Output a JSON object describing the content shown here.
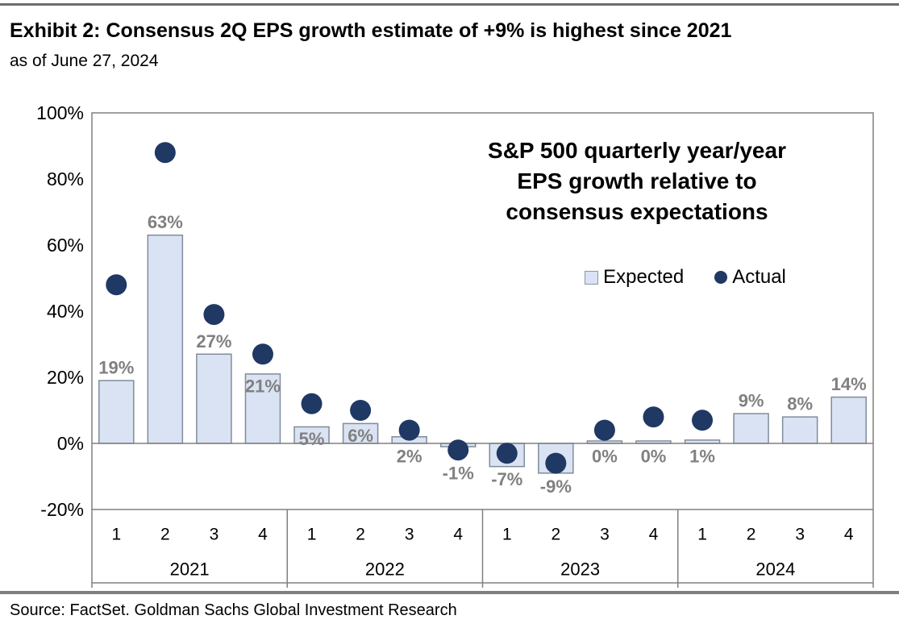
{
  "header": {
    "title": "Exhibit 2: Consensus 2Q EPS growth estimate of +9% is highest since 2021",
    "subtitle": "as of June 27, 2024"
  },
  "annotation": {
    "line1": "S&P 500 quarterly year/year",
    "line2": "EPS growth relative to",
    "line3": "consensus expectations"
  },
  "legend": {
    "expected_label": "Expected",
    "actual_label": "Actual"
  },
  "source": {
    "text": "Source: FactSet. Goldman Sachs Global Investment Research"
  },
  "colors": {
    "bar_fill": "#dae3f3",
    "bar_border": "#7f8c9b",
    "dot": "#1f3864",
    "value_label": "#808080",
    "axis_line": "#808080",
    "text": "#000000"
  },
  "chart_data": {
    "type": "bar+scatter",
    "title": "S&P 500 quarterly year/year EPS growth relative to consensus expectations",
    "categories": [
      "2021 Q1",
      "2021 Q2",
      "2021 Q3",
      "2021 Q4",
      "2022 Q1",
      "2022 Q2",
      "2022 Q3",
      "2022 Q4",
      "2023 Q1",
      "2023 Q2",
      "2023 Q3",
      "2023 Q4",
      "2024 Q1",
      "2024 Q2",
      "2024 Q3",
      "2024 Q4"
    ],
    "years": [
      {
        "label": "2021",
        "quarters": [
          "1",
          "2",
          "3",
          "4"
        ]
      },
      {
        "label": "2022",
        "quarters": [
          "1",
          "2",
          "3",
          "4"
        ]
      },
      {
        "label": "2023",
        "quarters": [
          "1",
          "2",
          "3",
          "4"
        ]
      },
      {
        "label": "2024",
        "quarters": [
          "1",
          "2",
          "3",
          "4"
        ]
      }
    ],
    "series": [
      {
        "name": "Expected",
        "type": "bar",
        "values": [
          19,
          63,
          27,
          21,
          5,
          6,
          2,
          -1,
          -7,
          -9,
          0,
          0,
          1,
          9,
          8,
          14
        ],
        "labels": [
          "19%",
          "63%",
          "27%",
          "21%",
          "5%",
          "6%",
          "2%",
          "-1%",
          "-7%",
          "-9%",
          "0%",
          "0%",
          "1%",
          "9%",
          "8%",
          "14%"
        ],
        "label_pos": [
          "above",
          "above",
          "above",
          "inside",
          "inside",
          "inside",
          "below",
          "below",
          "below",
          "below",
          "below",
          "below",
          "below",
          "above",
          "above",
          "above"
        ]
      },
      {
        "name": "Actual",
        "type": "scatter",
        "values": [
          48,
          88,
          39,
          27,
          12,
          10,
          4,
          -2,
          -3,
          -6,
          4,
          8,
          7,
          null,
          null,
          null
        ]
      }
    ],
    "ylabel": "",
    "xlabel": "",
    "ylim": [
      -20,
      100
    ],
    "ytick_values": [
      100,
      80,
      60,
      40,
      20,
      0,
      -20
    ],
    "ytick_labels": [
      "100%",
      "80%",
      "60%",
      "40%",
      "20%",
      "0%",
      "-20%"
    ],
    "gridlines": false,
    "legend_position": "inside-upper-right"
  }
}
